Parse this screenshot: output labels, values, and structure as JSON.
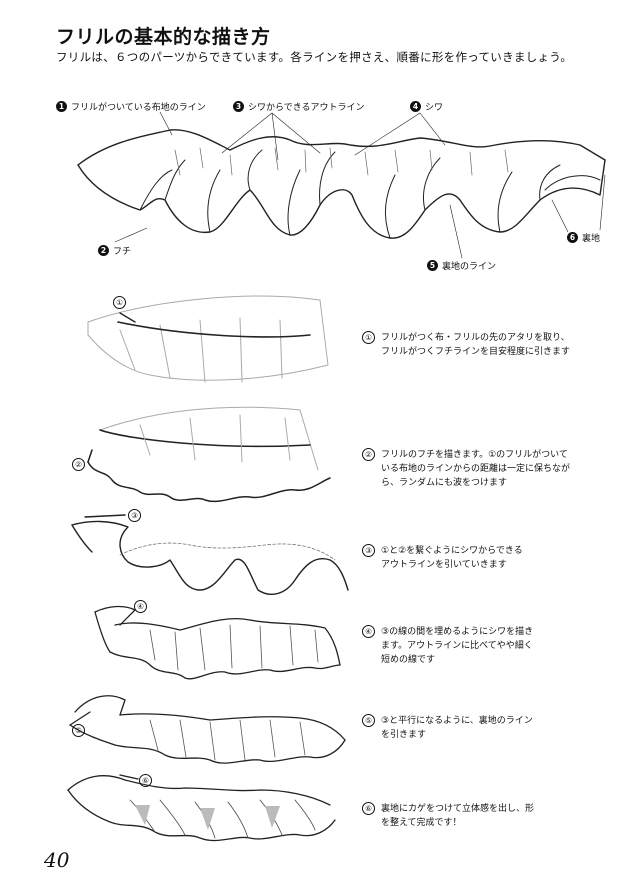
{
  "header": {
    "title": "フリルの基本的な描き方",
    "subtitle": "フリルは、６つのパーツからできています。各ラインを押さえ、順番に形を作っていきましょう。"
  },
  "parts": [
    {
      "num": "1",
      "label": "フリルがついている布地のライン"
    },
    {
      "num": "2",
      "label": "フチ"
    },
    {
      "num": "3",
      "label": "シワからできるアウトライン"
    },
    {
      "num": "4",
      "label": "シワ"
    },
    {
      "num": "5",
      "label": "裏地のライン"
    },
    {
      "num": "6",
      "label": "裏地"
    }
  ],
  "steps": [
    {
      "num": "①",
      "text": "フリルがつく布・フリルの先のアタリを取り、\nフリルがつくフチラインを目安程度に引きます"
    },
    {
      "num": "②",
      "text": "フリルのフチを描きます。①のフリルがついて\nいる布地のラインからの距離は一定に保ちなが\nら、ランダムにも波をつけます"
    },
    {
      "num": "③",
      "text": "①と②を繋ぐようにシワからできる\nアウトラインを引いていきます"
    },
    {
      "num": "④",
      "text": "③の線の間を埋めるようにシワを描き\nます。アウトラインに比べてやや細く\n短めの線です"
    },
    {
      "num": "⑤",
      "text": "③と平行になるように、裏地のライン\nを引きます"
    },
    {
      "num": "⑥",
      "text": "裏地にカゲをつけて立体感を出し、形\nを整えて完成です！"
    }
  ],
  "figure_markers": [
    "①",
    "②",
    "③",
    "④",
    "⑤",
    "⑥"
  ],
  "page_number": "40"
}
